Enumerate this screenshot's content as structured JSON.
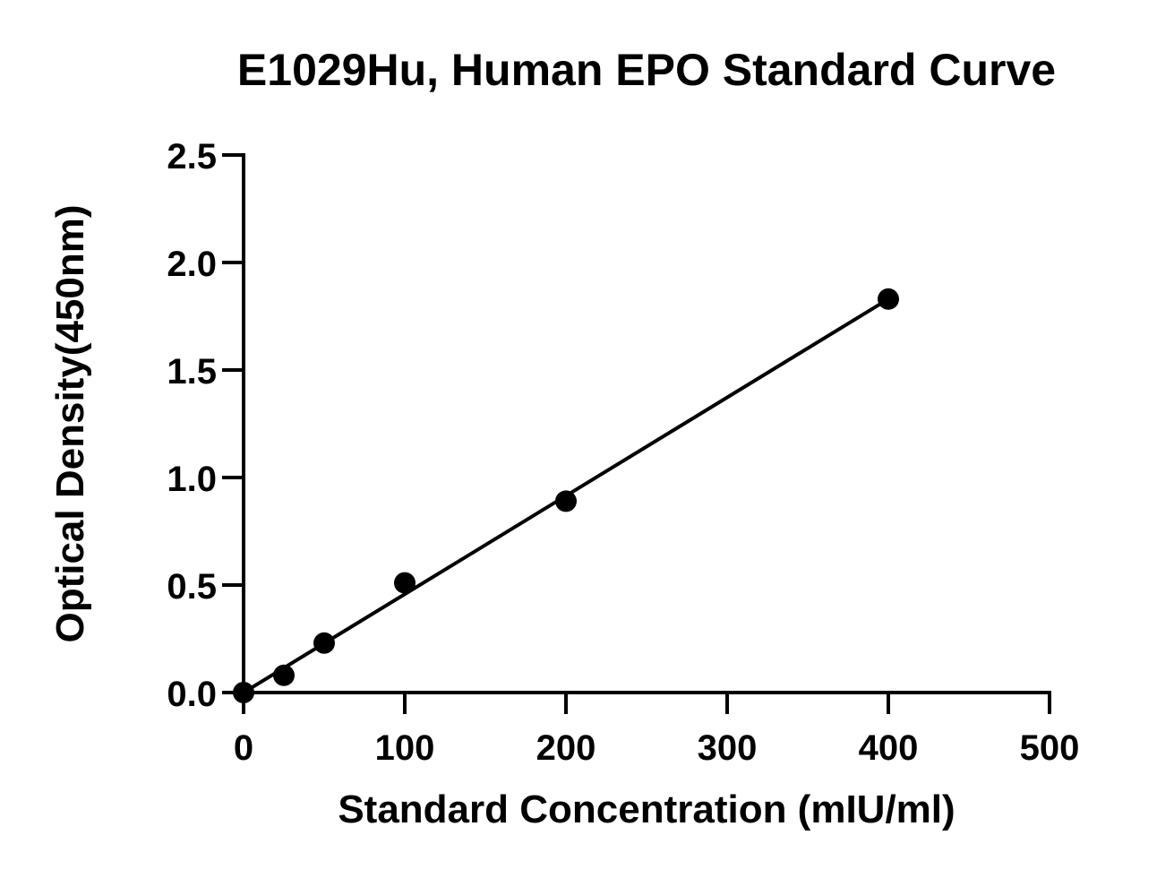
{
  "chart_data": {
    "type": "scatter",
    "title": "E1029Hu, Human EPO Standard Curve",
    "xlabel": "Standard Concentration (mIU/ml)",
    "ylabel": "Optical Density(450nm)",
    "xlim": [
      0,
      500
    ],
    "ylim": [
      0,
      2.5
    ],
    "x_ticks": [
      "0",
      "100",
      "200",
      "300",
      "400",
      "500"
    ],
    "y_ticks": [
      "0.0",
      "0.5",
      "1.0",
      "1.5",
      "2.0",
      "2.5"
    ],
    "grid": false,
    "legend": "none",
    "series": [
      {
        "points": [
          {
            "x": 0,
            "y": 0.0
          },
          {
            "x": 25,
            "y": 0.08
          },
          {
            "x": 50,
            "y": 0.23
          },
          {
            "x": 100,
            "y": 0.51
          },
          {
            "x": 200,
            "y": 0.89
          },
          {
            "x": 400,
            "y": 1.83
          }
        ]
      }
    ],
    "fit_line": {
      "type": "linear",
      "from": {
        "x": 0,
        "y": 0.0
      },
      "to": {
        "x": 400,
        "y": 1.83
      }
    },
    "colors": {
      "marker": "#000000",
      "line": "#000000",
      "axis": "#000000"
    }
  }
}
